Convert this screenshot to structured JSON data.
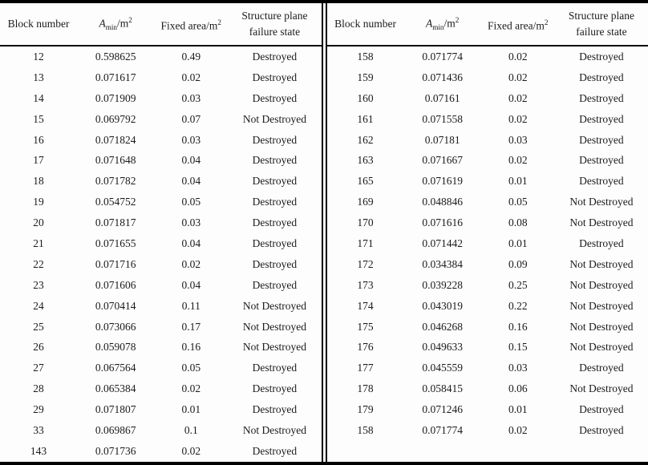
{
  "colors": {
    "background": "#fdfdfd",
    "text": "#1b1b1b",
    "border": "#000000"
  },
  "header": {
    "block_number": "Block number",
    "amin_var": "A",
    "amin_sub": "min",
    "amin_unit": "/m",
    "amin_sup": "2",
    "fixed_area": "Fixed area/m",
    "fixed_area_sup": "2",
    "failure_line1": "Structure plane",
    "failure_line2": "failure state"
  },
  "left_table": {
    "rows": [
      {
        "block": "12",
        "amin": "0.598625",
        "fixed": "0.49",
        "state": "Destroyed"
      },
      {
        "block": "13",
        "amin": "0.071617",
        "fixed": "0.02",
        "state": "Destroyed"
      },
      {
        "block": "14",
        "amin": "0.071909",
        "fixed": "0.03",
        "state": "Destroyed"
      },
      {
        "block": "15",
        "amin": "0.069792",
        "fixed": "0.07",
        "state": "Not Destroyed"
      },
      {
        "block": "16",
        "amin": "0.071824",
        "fixed": "0.03",
        "state": "Destroyed"
      },
      {
        "block": "17",
        "amin": "0.071648",
        "fixed": "0.04",
        "state": "Destroyed"
      },
      {
        "block": "18",
        "amin": "0.071782",
        "fixed": "0.04",
        "state": "Destroyed"
      },
      {
        "block": "19",
        "amin": "0.054752",
        "fixed": "0.05",
        "state": "Destroyed"
      },
      {
        "block": "20",
        "amin": "0.071817",
        "fixed": "0.03",
        "state": "Destroyed"
      },
      {
        "block": "21",
        "amin": "0.071655",
        "fixed": "0.04",
        "state": "Destroyed"
      },
      {
        "block": "22",
        "amin": "0.071716",
        "fixed": "0.02",
        "state": "Destroyed"
      },
      {
        "block": "23",
        "amin": "0.071606",
        "fixed": "0.04",
        "state": "Destroyed"
      },
      {
        "block": "24",
        "amin": "0.070414",
        "fixed": "0.11",
        "state": "Not Destroyed"
      },
      {
        "block": "25",
        "amin": "0.073066",
        "fixed": "0.17",
        "state": "Not Destroyed"
      },
      {
        "block": "26",
        "amin": "0.059078",
        "fixed": "0.16",
        "state": "Not Destroyed"
      },
      {
        "block": "27",
        "amin": "0.067564",
        "fixed": "0.05",
        "state": "Destroyed"
      },
      {
        "block": "28",
        "amin": "0.065384",
        "fixed": "0.02",
        "state": "Destroyed"
      },
      {
        "block": "29",
        "amin": "0.071807",
        "fixed": "0.01",
        "state": "Destroyed"
      },
      {
        "block": "33",
        "amin": "0.069867",
        "fixed": "0.1",
        "state": "Not Destroyed"
      },
      {
        "block": "143",
        "amin": "0.071736",
        "fixed": "0.02",
        "state": "Destroyed"
      }
    ]
  },
  "right_table": {
    "rows": [
      {
        "block": "158",
        "amin": "0.071774",
        "fixed": "0.02",
        "state": "Destroyed"
      },
      {
        "block": "159",
        "amin": "0.071436",
        "fixed": "0.02",
        "state": "Destroyed"
      },
      {
        "block": "160",
        "amin": "0.07161",
        "fixed": "0.02",
        "state": "Destroyed"
      },
      {
        "block": "161",
        "amin": "0.071558",
        "fixed": "0.02",
        "state": "Destroyed"
      },
      {
        "block": "162",
        "amin": "0.07181",
        "fixed": "0.03",
        "state": "Destroyed"
      },
      {
        "block": "163",
        "amin": "0.071667",
        "fixed": "0.02",
        "state": "Destroyed"
      },
      {
        "block": "165",
        "amin": "0.071619",
        "fixed": "0.01",
        "state": "Destroyed"
      },
      {
        "block": "169",
        "amin": "0.048846",
        "fixed": "0.05",
        "state": "Not Destroyed"
      },
      {
        "block": "170",
        "amin": "0.071616",
        "fixed": "0.08",
        "state": "Not Destroyed"
      },
      {
        "block": "171",
        "amin": "0.071442",
        "fixed": "0.01",
        "state": "Destroyed"
      },
      {
        "block": "172",
        "amin": "0.034384",
        "fixed": "0.09",
        "state": "Not Destroyed"
      },
      {
        "block": "173",
        "amin": "0.039228",
        "fixed": "0.25",
        "state": "Not Destroyed"
      },
      {
        "block": "174",
        "amin": "0.043019",
        "fixed": "0.22",
        "state": "Not Destroyed"
      },
      {
        "block": "175",
        "amin": "0.046268",
        "fixed": "0.16",
        "state": "Not Destroyed"
      },
      {
        "block": "176",
        "amin": "0.049633",
        "fixed": "0.15",
        "state": "Not Destroyed"
      },
      {
        "block": "177",
        "amin": "0.045559",
        "fixed": "0.03",
        "state": "Destroyed"
      },
      {
        "block": "178",
        "amin": "0.058415",
        "fixed": "0.06",
        "state": "Not Destroyed"
      },
      {
        "block": "179",
        "amin": "0.071246",
        "fixed": "0.01",
        "state": "Destroyed"
      },
      {
        "block": "158",
        "amin": "0.071774",
        "fixed": "0.02",
        "state": "Destroyed"
      }
    ]
  }
}
